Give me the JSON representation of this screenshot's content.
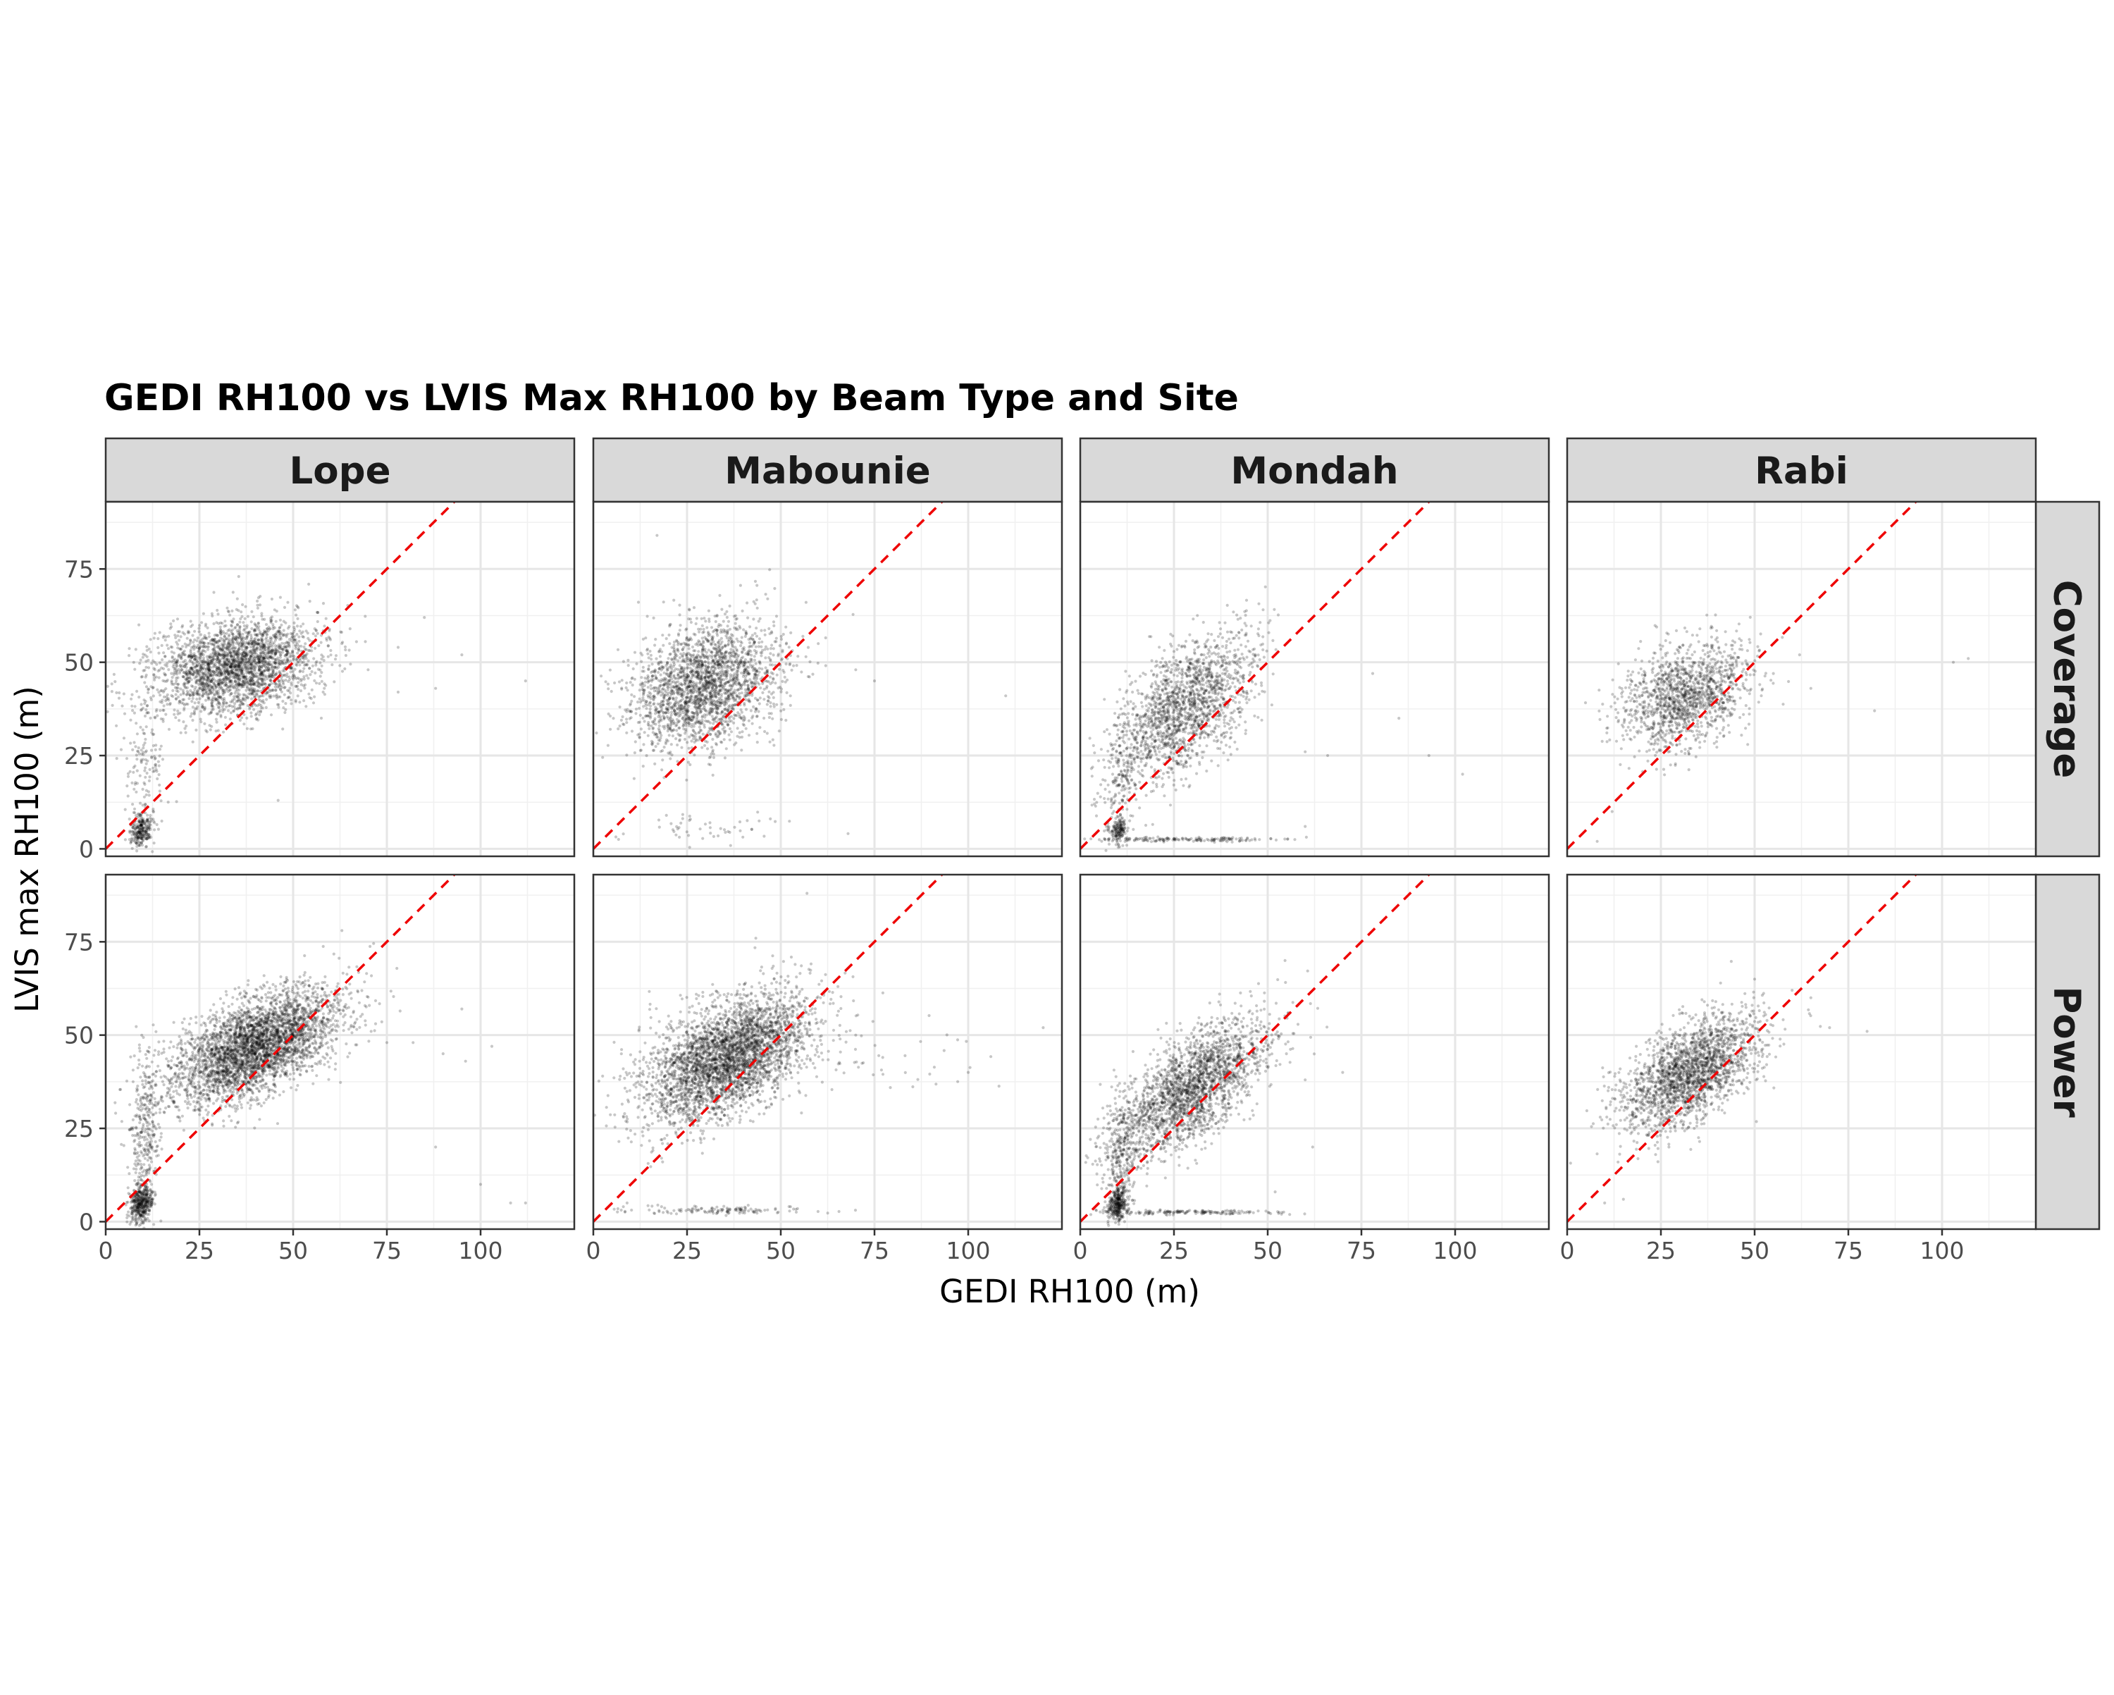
{
  "chart_data": {
    "type": "scatter",
    "title": "GEDI RH100 vs LVIS Max RH100 by Beam Type and Site",
    "xlabel": "GEDI RH100 (m)",
    "ylabel": "LVIS max RH100 (m)",
    "xlim": [
      0,
      125
    ],
    "ylim": [
      -2,
      93
    ],
    "x_ticks": [
      0,
      25,
      50,
      75,
      100
    ],
    "y_ticks": [
      0,
      25,
      50,
      75
    ],
    "facet_columns": [
      "Lope",
      "Mabounie",
      "Mondah",
      "Rabi"
    ],
    "facet_rows": [
      "Coverage",
      "Power"
    ],
    "grid": true,
    "legend": "none",
    "reference_line": {
      "type": "1:1",
      "style": "dashed",
      "color": "#ee0000"
    },
    "point_color": "#000000",
    "panels": [
      {
        "column": "Lope",
        "row": "Coverage",
        "clusters": [
          {
            "x_mean": 35,
            "x_sd": 11,
            "y_mean": 49,
            "y_sd": 6.5,
            "corr": 0.25,
            "count": 2600
          },
          {
            "x_mean": 9.5,
            "x_sd": 1.5,
            "y_mean": 5,
            "y_sd": 2.2,
            "corr": 0.2,
            "count": 260
          },
          {
            "x_mean": 10.5,
            "x_sd": 2.5,
            "y_mean": 24,
            "y_sd": 10,
            "corr": 0.1,
            "count": 140
          }
        ],
        "sparse": [
          [
            63,
            55
          ],
          [
            88,
            43
          ],
          [
            95,
            52
          ],
          [
            112,
            45
          ],
          [
            78,
            54
          ],
          [
            46,
            13
          ],
          [
            78,
            42
          ],
          [
            58,
            42
          ],
          [
            70,
            48
          ],
          [
            85,
            62
          ]
        ]
      },
      {
        "column": "Mabounie",
        "row": "Coverage",
        "clusters": [
          {
            "x_mean": 30,
            "x_sd": 10,
            "y_mean": 44,
            "y_sd": 8.5,
            "corr": 0.3,
            "count": 2300
          },
          {
            "x_mean": 30,
            "x_sd": 12,
            "y_mean": 5,
            "y_sd": 2,
            "corr": 0,
            "count": 50
          }
        ],
        "sparse": [
          [
            110,
            41
          ],
          [
            75,
            45
          ],
          [
            17,
            84
          ],
          [
            8,
            4
          ],
          [
            60,
            55
          ],
          [
            70,
            48
          ]
        ]
      },
      {
        "column": "Mondah",
        "row": "Coverage",
        "clusters": [
          {
            "x_mean": 28,
            "x_sd": 9,
            "y_mean": 38,
            "y_sd": 9.5,
            "corr": 0.55,
            "count": 1700
          },
          {
            "x_mean": 10,
            "x_sd": 1.3,
            "y_mean": 5,
            "y_sd": 2,
            "corr": 0.2,
            "count": 160
          },
          {
            "x_mean": 11,
            "x_sd": 2.5,
            "y_mean": 20,
            "y_sd": 8,
            "corr": 0.3,
            "count": 160
          },
          {
            "x_mean": 30,
            "x_sd": 14,
            "y_mean": 2.5,
            "y_sd": 0.3,
            "corr": 0,
            "count": 160
          }
        ],
        "sparse": [
          [
            60,
            26
          ],
          [
            66,
            25
          ],
          [
            93,
            25
          ],
          [
            102,
            20
          ],
          [
            60,
            6
          ],
          [
            78,
            47
          ],
          [
            85,
            35
          ]
        ]
      },
      {
        "column": "Rabi",
        "row": "Coverage",
        "clusters": [
          {
            "x_mean": 32,
            "x_sd": 8.5,
            "y_mean": 41,
            "y_sd": 7,
            "corr": 0.3,
            "count": 1400
          }
        ],
        "sparse": [
          [
            82,
            37
          ],
          [
            107,
            51
          ],
          [
            103,
            50
          ],
          [
            62,
            52
          ],
          [
            65,
            43
          ],
          [
            55,
            47
          ],
          [
            12,
            10
          ],
          [
            8,
            2
          ]
        ]
      },
      {
        "column": "Lope",
        "row": "Power",
        "clusters": [
          {
            "x_mean": 40,
            "x_sd": 11,
            "y_mean": 47,
            "y_sd": 7.5,
            "corr": 0.55,
            "count": 3600
          },
          {
            "x_mean": 9.5,
            "x_sd": 1.5,
            "y_mean": 5,
            "y_sd": 2.5,
            "corr": 0.2,
            "count": 420
          },
          {
            "x_mean": 10.5,
            "x_sd": 2.2,
            "y_mean": 25,
            "y_sd": 11,
            "corr": 0.1,
            "count": 300
          }
        ],
        "sparse": [
          [
            82,
            48
          ],
          [
            90,
            45
          ],
          [
            95,
            57
          ],
          [
            100,
            10
          ],
          [
            108,
            5
          ],
          [
            112,
            5
          ],
          [
            96,
            43
          ],
          [
            75,
            48
          ],
          [
            63,
            78
          ],
          [
            68,
            55
          ],
          [
            103,
            47
          ],
          [
            88,
            20
          ]
        ]
      },
      {
        "column": "Mabounie",
        "row": "Power",
        "clusters": [
          {
            "x_mean": 36,
            "x_sd": 11,
            "y_mean": 44,
            "y_sd": 8.5,
            "corr": 0.5,
            "count": 3500
          },
          {
            "x_mean": 35,
            "x_sd": 13,
            "y_mean": 3,
            "y_sd": 0.5,
            "corr": 0,
            "count": 130
          },
          {
            "x_mean": 80,
            "x_sd": 16,
            "y_mean": 44,
            "y_sd": 5,
            "corr": 0,
            "count": 50
          }
        ],
        "sparse": [
          [
            8,
            4
          ],
          [
            9,
            5
          ],
          [
            120,
            52
          ],
          [
            57,
            88
          ],
          [
            70,
            50
          ],
          [
            100,
            40
          ]
        ]
      },
      {
        "column": "Mondah",
        "row": "Power",
        "clusters": [
          {
            "x_mean": 30,
            "x_sd": 10,
            "y_mean": 36,
            "y_sd": 9,
            "corr": 0.65,
            "count": 2200
          },
          {
            "x_mean": 10,
            "x_sd": 1.3,
            "y_mean": 5,
            "y_sd": 2.2,
            "corr": 0.2,
            "count": 300
          },
          {
            "x_mean": 11,
            "x_sd": 2.5,
            "y_mean": 18,
            "y_sd": 8,
            "corr": 0.3,
            "count": 300
          },
          {
            "x_mean": 30,
            "x_sd": 12,
            "y_mean": 2.5,
            "y_sd": 0.3,
            "corr": 0,
            "count": 160
          }
        ],
        "sparse": [
          [
            55,
            45
          ],
          [
            60,
            38
          ],
          [
            62,
            20
          ],
          [
            70,
            40
          ],
          [
            52,
            8
          ]
        ]
      },
      {
        "column": "Rabi",
        "row": "Power",
        "clusters": [
          {
            "x_mean": 33,
            "x_sd": 9,
            "y_mean": 40,
            "y_sd": 7.5,
            "corr": 0.55,
            "count": 2100
          }
        ],
        "sparse": [
          [
            70,
            52
          ],
          [
            80,
            51
          ],
          [
            65,
            60
          ],
          [
            60,
            62
          ],
          [
            15,
            6
          ],
          [
            10,
            5
          ],
          [
            50,
            65
          ]
        ]
      }
    ]
  }
}
